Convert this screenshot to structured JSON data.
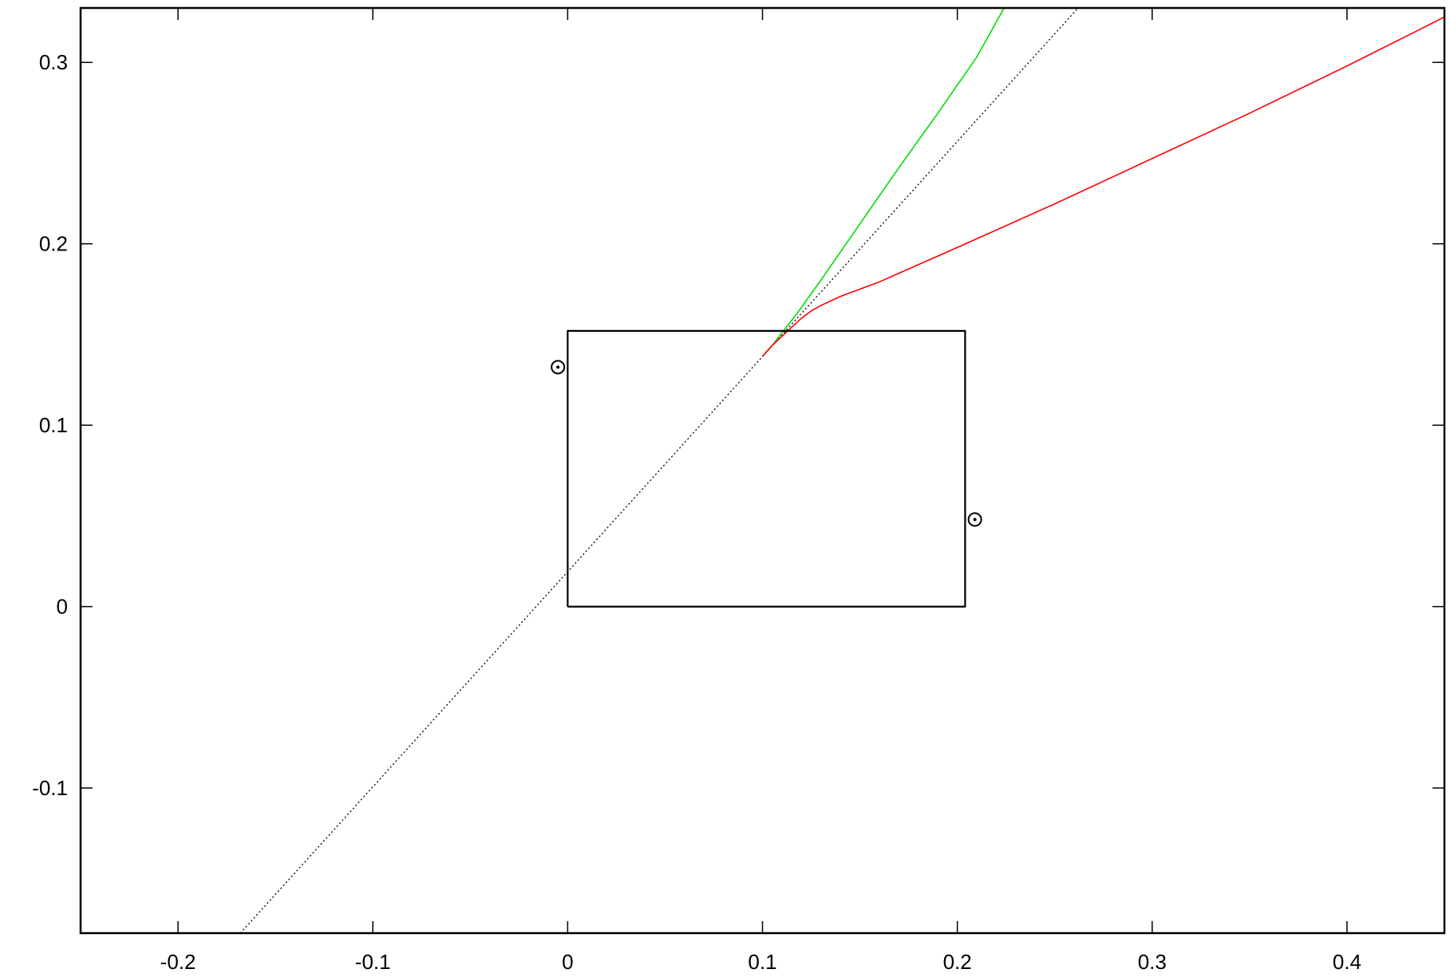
{
  "chart_data": {
    "type": "line",
    "title": "",
    "xlabel": "",
    "ylabel": "",
    "xlim": [
      -0.25,
      0.45
    ],
    "ylim": [
      -0.18,
      0.33
    ],
    "xticks": [
      -0.2,
      -0.1,
      0,
      0.1,
      0.2,
      0.3,
      0.4
    ],
    "xtick_labels": [
      "-0.2",
      "-0.1",
      "0",
      "0.1",
      "0.2",
      "0.3",
      "0.4"
    ],
    "yticks": [
      -0.1,
      0,
      0.1,
      0.2,
      0.3
    ],
    "ytick_labels": [
      "-0.1",
      "0",
      "0.1",
      "0.2",
      "0.3"
    ],
    "grid": false,
    "legend": "none",
    "series": [
      {
        "style": "dotted",
        "color": "#000000",
        "x": [
          -0.168,
          0.262
        ],
        "y": [
          -0.18,
          0.33
        ]
      },
      {
        "style": "solid",
        "color": "#00dd00",
        "x": [
          0.1,
          0.105,
          0.11,
          0.118,
          0.13,
          0.15,
          0.17,
          0.19,
          0.21,
          0.224
        ],
        "y": [
          0.138,
          0.144,
          0.151,
          0.162,
          0.18,
          0.211,
          0.242,
          0.272,
          0.303,
          0.33
        ]
      },
      {
        "style": "solid",
        "color": "#ff0000",
        "x": [
          0.1,
          0.105,
          0.11,
          0.115,
          0.12,
          0.125,
          0.13,
          0.14,
          0.15,
          0.16,
          0.2,
          0.25,
          0.3,
          0.35,
          0.4,
          0.45
        ],
        "y": [
          0.138,
          0.144,
          0.149,
          0.154,
          0.159,
          0.163,
          0.166,
          0.171,
          0.175,
          0.179,
          0.198,
          0.222,
          0.247,
          0.272,
          0.298,
          0.325
        ]
      },
      {
        "style": "box",
        "color": "#000000",
        "x": [
          0,
          0.204,
          0.204,
          0,
          0
        ],
        "y": [
          0,
          0,
          0.152,
          0.152,
          0
        ]
      }
    ],
    "points": [
      {
        "x": -0.005,
        "y": 0.132,
        "marker": "circle-dot"
      },
      {
        "x": 0.209,
        "y": 0.048,
        "marker": "circle-dot"
      }
    ]
  }
}
